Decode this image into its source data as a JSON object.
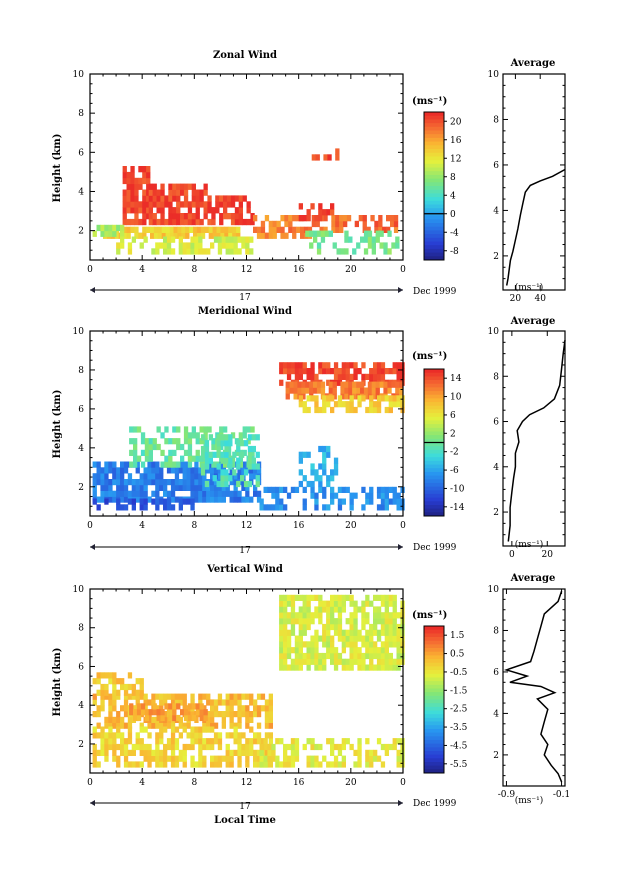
{
  "chart_data": [
    {
      "type": "heatmap",
      "title": "Zonal Wind",
      "ylabel": "Height (km)",
      "xlim": [
        0,
        24
      ],
      "ylim": [
        0.5,
        10
      ],
      "x_ticks": [
        "0",
        "4",
        "8",
        "12",
        "16",
        "20",
        "0"
      ],
      "y_ticks": [
        "2",
        "4",
        "6",
        "8",
        "10"
      ],
      "date_day": "17",
      "date_right": "Dec 1999",
      "colorbar": {
        "unit": "(ms⁻¹)",
        "ticks": [
          "20",
          "16",
          "12",
          "8",
          "4",
          "0",
          "-4",
          "-8"
        ],
        "min": -10,
        "max": 22,
        "contour": 0
      },
      "regions": [
        {
          "x": [
            1.0,
            11.5
          ],
          "y": [
            1.6,
            2.2
          ],
          "v": 14,
          "density": 0.85
        },
        {
          "x": [
            2.5,
            4.5
          ],
          "y": [
            2.3,
            5.2
          ],
          "v": 21,
          "density": 0.85
        },
        {
          "x": [
            4.5,
            9.0
          ],
          "y": [
            2.3,
            4.2
          ],
          "v": 21,
          "density": 0.8
        },
        {
          "x": [
            9.0,
            12.5
          ],
          "y": [
            2.3,
            3.7
          ],
          "v": 21,
          "density": 0.6
        },
        {
          "x": [
            0.2,
            2.5
          ],
          "y": [
            1.7,
            2.2
          ],
          "v": 9,
          "density": 0.7
        },
        {
          "x": [
            2.0,
            12.5
          ],
          "y": [
            0.8,
            1.7
          ],
          "v": 11,
          "density": 0.6
        },
        {
          "x": [
            12.5,
            17.0
          ],
          "y": [
            1.6,
            2.6
          ],
          "v": 18,
          "density": 0.7
        },
        {
          "x": [
            17.0,
            23.5
          ],
          "y": [
            1.9,
            2.6
          ],
          "v": 19,
          "density": 0.6
        },
        {
          "x": [
            16.5,
            23.5
          ],
          "y": [
            0.8,
            1.9
          ],
          "v": 7,
          "density": 0.5
        },
        {
          "x": [
            16.0,
            18.5
          ],
          "y": [
            2.5,
            3.3
          ],
          "v": 21,
          "density": 0.5
        },
        {
          "x": [
            17.0,
            19.0
          ],
          "y": [
            5.6,
            5.9
          ],
          "v": 21,
          "density": 0.5
        }
      ],
      "average": {
        "title": "Average",
        "xticks": [
          "20",
          "40"
        ],
        "xlim": [
          10,
          60
        ],
        "unit": "(ms⁻¹)",
        "profile_x": [
          13,
          14,
          15,
          16,
          18,
          20,
          22,
          24,
          26,
          28,
          32,
          40,
          50,
          60
        ],
        "profile_y": [
          0.7,
          1.0,
          1.4,
          1.8,
          2.2,
          2.7,
          3.2,
          3.8,
          4.3,
          4.8,
          5.1,
          5.3,
          5.5,
          5.8
        ]
      }
    },
    {
      "type": "heatmap",
      "title": "Meridional Wind",
      "ylabel": "Height (km)",
      "xlim": [
        0,
        24
      ],
      "ylim": [
        0.5,
        10
      ],
      "x_ticks": [
        "0",
        "4",
        "8",
        "12",
        "16",
        "20",
        "0"
      ],
      "y_ticks": [
        "2",
        "4",
        "6",
        "8",
        "10"
      ],
      "date_day": "17",
      "date_right": "Dec 1999",
      "colorbar": {
        "unit": "(ms⁻¹)",
        "ticks": [
          "14",
          "10",
          "6",
          "2",
          "-2",
          "-6",
          "-10",
          "-14"
        ],
        "min": -16,
        "max": 16,
        "contour": 0
      },
      "regions": [
        {
          "x": [
            14.5,
            24.0
          ],
          "y": [
            7.2,
            8.3
          ],
          "v": 15,
          "density": 0.75
        },
        {
          "x": [
            15.0,
            24.0
          ],
          "y": [
            6.5,
            7.2
          ],
          "v": 12,
          "density": 0.8
        },
        {
          "x": [
            16.0,
            24.0
          ],
          "y": [
            5.8,
            6.5
          ],
          "v": 8,
          "density": 0.7
        },
        {
          "x": [
            0.2,
            13.0
          ],
          "y": [
            1.2,
            3.0
          ],
          "v": -8,
          "density": 0.8
        },
        {
          "x": [
            3.0,
            12.5
          ],
          "y": [
            3.0,
            5.0
          ],
          "v": 0,
          "density": 0.55
        },
        {
          "x": [
            0.2,
            8.0
          ],
          "y": [
            0.8,
            1.3
          ],
          "v": -11,
          "density": 0.6
        },
        {
          "x": [
            13.0,
            24.0
          ],
          "y": [
            0.8,
            2.0
          ],
          "v": -7,
          "density": 0.55
        },
        {
          "x": [
            16.0,
            19.0
          ],
          "y": [
            2.0,
            4.0
          ],
          "v": -5,
          "density": 0.5
        },
        {
          "x": [
            8.5,
            13.0
          ],
          "y": [
            2.0,
            4.5
          ],
          "v": -1,
          "density": 0.5
        }
      ],
      "average": {
        "title": "Average",
        "xticks": [
          "0",
          "20"
        ],
        "xlim": [
          -5,
          30
        ],
        "unit": "(ms⁻¹)",
        "profile_x": [
          -2,
          -1,
          -1,
          0,
          1,
          2,
          2,
          4,
          3,
          6,
          10,
          18,
          24,
          27,
          28,
          29,
          30
        ],
        "profile_y": [
          0.7,
          1.4,
          2.2,
          2.9,
          3.5,
          4.0,
          4.6,
          5.1,
          5.6,
          6.0,
          6.3,
          6.6,
          7.0,
          7.6,
          8.3,
          9.0,
          9.6
        ]
      }
    },
    {
      "type": "heatmap",
      "title": "Vertical Wind",
      "xlabel": "Local Time",
      "ylabel": "Height (km)",
      "xlim": [
        0,
        24
      ],
      "ylim": [
        0.5,
        10
      ],
      "x_ticks": [
        "0",
        "4",
        "8",
        "12",
        "16",
        "20",
        "0"
      ],
      "y_ticks": [
        "2",
        "4",
        "6",
        "8",
        "10"
      ],
      "date_day": "17",
      "date_right": "Dec 1999",
      "colorbar": {
        "unit": "(ms⁻¹)",
        "ticks": [
          "1.5",
          "0.5",
          "-0.5",
          "-1.5",
          "-2.5",
          "-3.5",
          "-4.5",
          "-5.5"
        ],
        "min": -6,
        "max": 2,
        "contour": null
      },
      "regions": [
        {
          "x": [
            14.5,
            24.0
          ],
          "y": [
            5.8,
            9.5
          ],
          "v": -0.7,
          "density": 0.8
        },
        {
          "x": [
            0.2,
            14.0
          ],
          "y": [
            2.8,
            4.5
          ],
          "v": 0.3,
          "density": 0.7
        },
        {
          "x": [
            3.0,
            9.0
          ],
          "y": [
            3.2,
            3.9
          ],
          "v": 0.6,
          "density": 0.6
        },
        {
          "x": [
            0.2,
            14.0
          ],
          "y": [
            0.8,
            2.8
          ],
          "v": -0.1,
          "density": 0.65
        },
        {
          "x": [
            13.0,
            24.0
          ],
          "y": [
            0.8,
            2.2
          ],
          "v": -0.5,
          "density": 0.55
        },
        {
          "x": [
            0.2,
            4.0
          ],
          "y": [
            4.5,
            5.4
          ],
          "v": 0.0,
          "density": 0.5
        }
      ],
      "average": {
        "title": "Average",
        "xticks": [
          "-0.9",
          "-0.1"
        ],
        "xlim": [
          -0.95,
          -0.05
        ],
        "unit": "(ms⁻¹)",
        "profile_x": [
          -0.1,
          -0.15,
          -0.25,
          -0.35,
          -0.3,
          -0.4,
          -0.35,
          -0.3,
          -0.45,
          -0.2,
          -0.4,
          -0.85,
          -0.6,
          -0.9,
          -0.55,
          -0.5,
          -0.45,
          -0.4,
          -0.35,
          -0.15,
          -0.1
        ],
        "profile_y": [
          0.7,
          1.1,
          1.5,
          2.0,
          2.5,
          3.0,
          3.6,
          4.2,
          4.7,
          5.0,
          5.3,
          5.5,
          5.8,
          6.1,
          6.5,
          7.0,
          7.6,
          8.2,
          8.8,
          9.4,
          9.9
        ]
      }
    }
  ]
}
